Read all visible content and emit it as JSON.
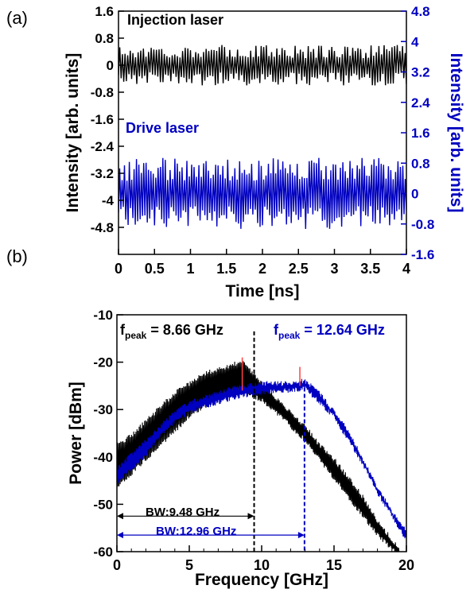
{
  "panels": {
    "a": "(a)",
    "b": "(b)"
  },
  "chart_data": [
    {
      "type": "line",
      "panel": "(a)",
      "xlabel": "Time [ns]",
      "ylabel_left": "Intensity [arb. units]",
      "ylabel_right": "Intensity [arb. units]",
      "xlim": [
        0,
        4
      ],
      "ylim_left": [
        -5.6,
        1.6
      ],
      "ylim_right": [
        -1.6,
        4.8
      ],
      "x_ticks": [
        "0",
        "0.5",
        "1",
        "1.5",
        "2",
        "2.5",
        "3",
        "3.5",
        "4"
      ],
      "y_ticks_left": [
        "1.6",
        "0.8",
        "0",
        "-0.8",
        "-1.6",
        "-2.4",
        "-3.2",
        "-4",
        "-4.8"
      ],
      "y_ticks_right": [
        "4.8",
        "4",
        "3.2",
        "2.4",
        "1.6",
        "0.8",
        "0",
        "-0.8",
        "-1.6"
      ],
      "series": [
        {
          "name": "Injection laser",
          "color": "#000000",
          "axis": "left",
          "center": 0.0,
          "amplitude": 0.6,
          "x_range": [
            0,
            4
          ],
          "samples": 220,
          "note": "chaotic fluctuation"
        },
        {
          "name": "Drive laser",
          "color": "#0000c0",
          "axis": "right",
          "center": 0.0,
          "amplitude": 0.95,
          "x_range": [
            0,
            4
          ],
          "samples": 240,
          "note": "chaotic fluctuation"
        }
      ]
    },
    {
      "type": "line",
      "panel": "(b)",
      "xlabel": "Frequency [GHz]",
      "ylabel": "Power [dBm]",
      "xlim": [
        0,
        20
      ],
      "ylim": [
        -60,
        -10
      ],
      "x_ticks": [
        "0",
        "5",
        "10",
        "15",
        "20"
      ],
      "y_ticks": [
        "-10",
        "-20",
        "-30",
        "-40",
        "-50",
        "-60"
      ],
      "series": [
        {
          "name": "Injection laser",
          "color": "#000000",
          "envelope_upper": [
            [
              0,
              -37
            ],
            [
              1,
              -35
            ],
            [
              2,
              -32
            ],
            [
              3,
              -29
            ],
            [
              4,
              -26
            ],
            [
              5,
              -24
            ],
            [
              6,
              -22
            ],
            [
              7,
              -21
            ],
            [
              8,
              -20
            ],
            [
              8.66,
              -19.5
            ],
            [
              9.5,
              -22
            ],
            [
              10,
              -24
            ],
            [
              11,
              -27
            ],
            [
              12,
              -30
            ],
            [
              13,
              -33
            ],
            [
              14,
              -37
            ],
            [
              15,
              -40
            ],
            [
              16,
              -44
            ],
            [
              17,
              -48
            ],
            [
              18,
              -53
            ],
            [
              19,
              -57
            ],
            [
              19.5,
              -59
            ]
          ],
          "envelope_lower": [
            [
              0,
              -47
            ],
            [
              1,
              -44
            ],
            [
              2,
              -41
            ],
            [
              3,
              -38
            ],
            [
              4,
              -35
            ],
            [
              5,
              -32
            ],
            [
              6,
              -30
            ],
            [
              7,
              -28
            ],
            [
              8,
              -27
            ],
            [
              9,
              -27
            ],
            [
              10,
              -28.5
            ],
            [
              11,
              -31
            ],
            [
              12,
              -34
            ],
            [
              13,
              -37
            ],
            [
              14,
              -41
            ],
            [
              15,
              -45
            ],
            [
              16,
              -49
            ],
            [
              17,
              -53
            ],
            [
              18,
              -57
            ],
            [
              19,
              -60
            ],
            [
              19.5,
              -61
            ]
          ]
        },
        {
          "name": "Drive laser",
          "color": "#0000c0",
          "envelope_upper": [
            [
              0,
              -42
            ],
            [
              1,
              -39
            ],
            [
              2,
              -36
            ],
            [
              3,
              -33
            ],
            [
              4,
              -30
            ],
            [
              5,
              -28
            ],
            [
              6,
              -27
            ],
            [
              7,
              -26
            ],
            [
              8,
              -25
            ],
            [
              9,
              -24.5
            ],
            [
              10,
              -24
            ],
            [
              11,
              -24
            ],
            [
              12,
              -24
            ],
            [
              12.64,
              -23.5
            ],
            [
              13,
              -23.5
            ],
            [
              14,
              -26
            ],
            [
              15,
              -30
            ],
            [
              16,
              -34
            ],
            [
              17,
              -40
            ],
            [
              18,
              -46
            ],
            [
              19,
              -51
            ],
            [
              20,
              -55
            ]
          ],
          "envelope_lower": [
            [
              0,
              -46
            ],
            [
              1,
              -43
            ],
            [
              2,
              -40
            ],
            [
              3,
              -36
            ],
            [
              4,
              -33
            ],
            [
              5,
              -31
            ],
            [
              6,
              -30
            ],
            [
              7,
              -29
            ],
            [
              8,
              -28
            ],
            [
              9,
              -27.5
            ],
            [
              10,
              -27
            ],
            [
              11,
              -26.5
            ],
            [
              12,
              -26.5
            ],
            [
              13,
              -26
            ],
            [
              14,
              -29
            ],
            [
              15,
              -32
            ],
            [
              16,
              -37
            ],
            [
              17,
              -42
            ],
            [
              18,
              -48
            ],
            [
              19,
              -53
            ],
            [
              20,
              -58
            ]
          ]
        }
      ],
      "annotations": {
        "peak_black": {
          "f_label": "f",
          "sub": "peak",
          "text": " = 8.66 GHz",
          "x": 8.66,
          "color": "#000000"
        },
        "peak_blue": {
          "f_label": "f",
          "sub": "peak",
          "text": " = 12.64 GHz",
          "x": 12.64,
          "color": "#0000c0"
        },
        "bw_black": {
          "label": "BW:9.48 GHz",
          "x": 9.48,
          "color": "#000000"
        },
        "bw_blue": {
          "label": "BW:12.96 GHz",
          "x": 12.96,
          "color": "#0000c0"
        },
        "peak_marker_color": "#ff4040"
      }
    }
  ]
}
